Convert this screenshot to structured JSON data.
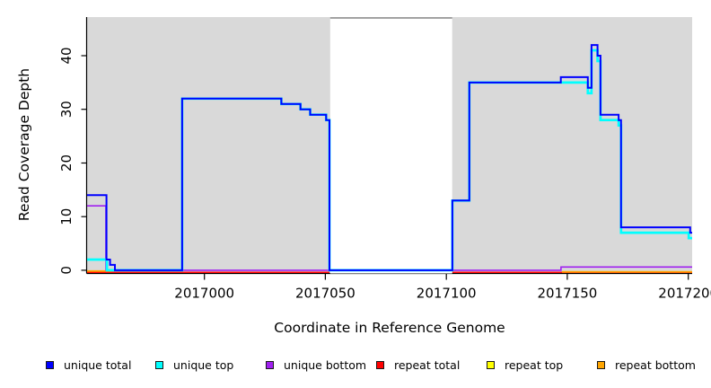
{
  "chart_data": {
    "type": "line",
    "title": "",
    "xlabel": "Coordinate in Reference Genome",
    "ylabel": "Read Coverage Depth",
    "xlim": [
      2016951.5,
      2017201.6
    ],
    "ylim": [
      -0.6,
      47.2
    ],
    "xticks": [
      2017000,
      2017050,
      2017100,
      2017150,
      2017200
    ],
    "yticks": [
      0,
      10,
      20,
      30,
      40
    ],
    "grid": false,
    "panel_bg": "#d9d9d9",
    "axis_color": "#000000",
    "legend_position": "bottom",
    "masked_region": {
      "x1": 2017052.0,
      "x2": 2017102.4,
      "fill": "#ffffff",
      "top_border_color": "#8a8a8a"
    },
    "series": [
      {
        "name": "repeat top",
        "color": "#FFFF00",
        "line_width": 1.4,
        "steps": [
          [
            2016951.5,
            -0.38
          ],
          [
            2017051.7,
            null
          ],
          [
            2017102.5,
            -0.38
          ],
          [
            2017201.6,
            null
          ]
        ]
      },
      {
        "name": "repeat total",
        "color": "#FF0000",
        "line_width": 1.5,
        "steps": [
          [
            2016951.5,
            -0.38
          ],
          [
            2017051.7,
            null
          ],
          [
            2017102.5,
            -0.38
          ],
          [
            2017201.6,
            null
          ]
        ]
      },
      {
        "name": "repeat bottom",
        "color": "#FFA500",
        "line_width": 1.8,
        "steps": [
          [
            2016951.5,
            -0.15
          ],
          [
            2016961.5,
            null
          ],
          [
            2017147.8,
            -0.3
          ],
          [
            2017201.6,
            null
          ]
        ]
      },
      {
        "name": "unique bottom",
        "color": "#A020F0",
        "line_width": 1.6,
        "steps": [
          [
            2016951.5,
            12
          ],
          [
            2016959.3,
            0
          ],
          [
            2017147.4,
            0.6
          ],
          [
            2017201.6,
            null
          ]
        ]
      },
      {
        "name": "unique top",
        "color": "#00FFFF",
        "line_width": 2.7,
        "steps": [
          [
            2016951.5,
            2
          ],
          [
            2016959.7,
            0
          ],
          [
            2016990.8,
            32
          ],
          [
            2017031.8,
            31
          ],
          [
            2017039.7,
            30
          ],
          [
            2017043.7,
            29
          ],
          [
            2017050.3,
            28
          ],
          [
            2017051.7,
            0
          ],
          [
            2017102.5,
            13
          ],
          [
            2017109.5,
            35
          ],
          [
            2017158.5,
            33
          ],
          [
            2017160.0,
            41
          ],
          [
            2017162.5,
            39
          ],
          [
            2017163.7,
            28
          ],
          [
            2017171.2,
            27
          ],
          [
            2017172.2,
            7
          ],
          [
            2017200.2,
            6
          ],
          [
            2017201.6,
            null
          ]
        ]
      },
      {
        "name": "unique total",
        "color": "#0000FF",
        "line_width": 2.0,
        "steps": [
          [
            2016951.5,
            14
          ],
          [
            2016959.5,
            2
          ],
          [
            2016961.0,
            1
          ],
          [
            2016963.0,
            0
          ],
          [
            2016990.8,
            32
          ],
          [
            2017031.8,
            31
          ],
          [
            2017039.7,
            30
          ],
          [
            2017043.7,
            29
          ],
          [
            2017050.3,
            28
          ],
          [
            2017051.7,
            0
          ],
          [
            2017102.5,
            13
          ],
          [
            2017109.5,
            35
          ],
          [
            2017147.3,
            36
          ],
          [
            2017158.5,
            34
          ],
          [
            2017160.0,
            42
          ],
          [
            2017162.5,
            40
          ],
          [
            2017163.7,
            29
          ],
          [
            2017171.2,
            28
          ],
          [
            2017172.2,
            8
          ],
          [
            2017200.8,
            7
          ],
          [
            2017201.6,
            null
          ]
        ]
      }
    ]
  },
  "legend": {
    "items": [
      {
        "label": "unique total",
        "color": "#0000FF"
      },
      {
        "label": "unique top",
        "color": "#00FFFF"
      },
      {
        "label": "unique bottom",
        "color": "#A020F0"
      },
      {
        "label": "repeat total",
        "color": "#FF0000"
      },
      {
        "label": "repeat top",
        "color": "#FFFF00"
      },
      {
        "label": "repeat bottom",
        "color": "#FFA500"
      }
    ]
  }
}
